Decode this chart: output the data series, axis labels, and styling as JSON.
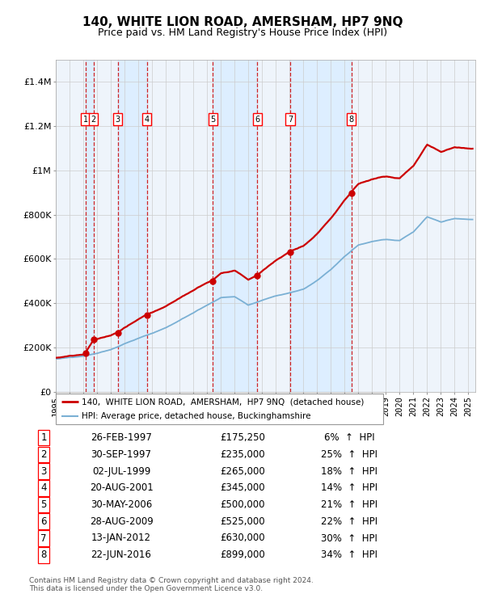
{
  "title": "140, WHITE LION ROAD, AMERSHAM, HP7 9NQ",
  "subtitle": "Price paid vs. HM Land Registry's House Price Index (HPI)",
  "xlim_start": 1995.0,
  "xlim_end": 2025.5,
  "ylim_min": 0,
  "ylim_max": 1500000,
  "yticks": [
    0,
    200000,
    400000,
    600000,
    800000,
    1000000,
    1200000,
    1400000
  ],
  "ytick_labels": [
    "£0",
    "£200K",
    "£400K",
    "£600K",
    "£800K",
    "£1M",
    "£1.2M",
    "£1.4M"
  ],
  "sale_color": "#cc0000",
  "hpi_color": "#7ab0d4",
  "background_color": "#ffffff",
  "grid_color": "#cccccc",
  "vband_color": "#ddeeff",
  "vline_color": "#cc0000",
  "legend_label_sale": "140,  WHITE LION ROAD,  AMERSHAM,  HP7 9NQ  (detached house)",
  "legend_label_hpi": "HPI: Average price, detached house, Buckinghamshire",
  "footer": "Contains HM Land Registry data © Crown copyright and database right 2024.\nThis data is licensed under the Open Government Licence v3.0.",
  "sales": [
    {
      "num": 1,
      "date_str": "26-FEB-1997",
      "year": 1997.15,
      "price": 175250,
      "pct": "6%",
      "dir": "↑"
    },
    {
      "num": 2,
      "date_str": "30-SEP-1997",
      "year": 1997.75,
      "price": 235000,
      "pct": "25%",
      "dir": "↑"
    },
    {
      "num": 3,
      "date_str": "02-JUL-1999",
      "year": 1999.5,
      "price": 265000,
      "pct": "18%",
      "dir": "↑"
    },
    {
      "num": 4,
      "date_str": "20-AUG-2001",
      "year": 2001.64,
      "price": 345000,
      "pct": "14%",
      "dir": "↑"
    },
    {
      "num": 5,
      "date_str": "30-MAY-2006",
      "year": 2006.41,
      "price": 500000,
      "pct": "21%",
      "dir": "↑"
    },
    {
      "num": 6,
      "date_str": "28-AUG-2009",
      "year": 2009.66,
      "price": 525000,
      "pct": "22%",
      "dir": "↑"
    },
    {
      "num": 7,
      "date_str": "13-JAN-2012",
      "year": 2012.04,
      "price": 630000,
      "pct": "30%",
      "dir": "↑"
    },
    {
      "num": 8,
      "date_str": "22-JUN-2016",
      "year": 2016.48,
      "price": 899000,
      "pct": "34%",
      "dir": "↑"
    }
  ],
  "hpi_key_years": [
    1995,
    1996,
    1997,
    1998,
    1999,
    2000,
    2001,
    2002,
    2003,
    2004,
    2005,
    2006,
    2007,
    2008,
    2009,
    2010,
    2011,
    2012,
    2013,
    2014,
    2015,
    2016,
    2017,
    2018,
    2019,
    2020,
    2021,
    2022,
    2023,
    2024,
    2025
  ],
  "hpi_key_vals": [
    148000,
    155000,
    163000,
    175000,
    193000,
    220000,
    245000,
    268000,
    295000,
    330000,
    365000,
    400000,
    435000,
    440000,
    400000,
    420000,
    440000,
    455000,
    470000,
    510000,
    560000,
    620000,
    670000,
    685000,
    695000,
    690000,
    730000,
    800000,
    775000,
    790000,
    785000
  ]
}
